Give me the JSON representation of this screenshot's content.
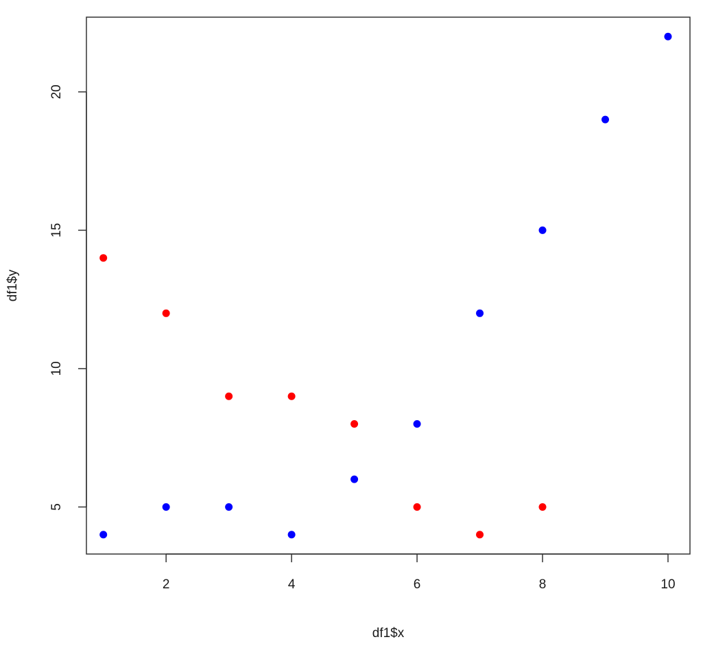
{
  "chart_data": {
    "type": "scatter",
    "title": "",
    "xlabel": "df1$x",
    "ylabel": "df1$y",
    "xlim": [
      0.73,
      10.35
    ],
    "ylim": [
      3.3,
      22.7
    ],
    "x_ticks": [
      2,
      4,
      6,
      8,
      10
    ],
    "y_ticks": [
      5,
      10,
      15,
      20
    ],
    "grid": false,
    "series": [
      {
        "color": "#0000ff",
        "points": [
          {
            "x": 1,
            "y": 4
          },
          {
            "x": 2,
            "y": 5
          },
          {
            "x": 3,
            "y": 5
          },
          {
            "x": 4,
            "y": 4
          },
          {
            "x": 5,
            "y": 6
          },
          {
            "x": 6,
            "y": 8
          },
          {
            "x": 7,
            "y": 12
          },
          {
            "x": 8,
            "y": 15
          },
          {
            "x": 9,
            "y": 19
          },
          {
            "x": 10,
            "y": 22
          }
        ]
      },
      {
        "color": "#ff0000",
        "points": [
          {
            "x": 1,
            "y": 14
          },
          {
            "x": 2,
            "y": 12
          },
          {
            "x": 3,
            "y": 9
          },
          {
            "x": 4,
            "y": 9
          },
          {
            "x": 5,
            "y": 8
          },
          {
            "x": 6,
            "y": 5
          },
          {
            "x": 7,
            "y": 4
          },
          {
            "x": 8,
            "y": 5
          }
        ]
      }
    ]
  }
}
